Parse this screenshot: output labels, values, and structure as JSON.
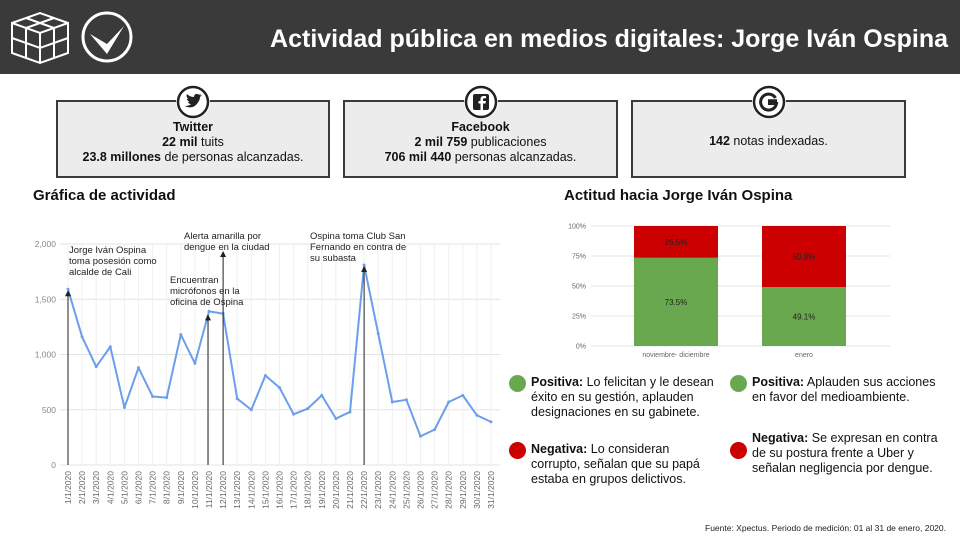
{
  "header": {
    "title": "Actividad pública en medios digitales: Jorge Iván Ospina"
  },
  "stats": {
    "twitter": {
      "name": "Twitter",
      "line1_bold": "22 mil",
      "line1_rest": " tuits",
      "line2_bold": "23.8 millones",
      "line2_rest": " de personas alcanzadas."
    },
    "facebook": {
      "name": "Facebook",
      "line1_bold": "2 mil 759",
      "line1_rest": " publicaciones",
      "line2_bold": "706 mil 440",
      "line2_rest": " personas alcanzadas."
    },
    "google": {
      "line1_bold": "142",
      "line1_rest": " notas indexadas."
    }
  },
  "sections": {
    "activity_title": "Gráfica de actividad",
    "attitude_title": "Actitud hacia Jorge Iván Ospina"
  },
  "legend": {
    "positive1_label": "Positiva:",
    "positive1_text": " Lo felicitan y le desean éxito en su gestión, aplauden designaciones en su gabinete.",
    "negative1_label": "Negativa:",
    "negative1_text": " Lo consideran corrupto, señalan que su papá estaba en grupos delictivos.",
    "positive2_label": "Positiva:",
    "positive2_text": "  Aplauden sus acciones en favor del medioambiente.",
    "negative2_label": "Negativa:",
    "negative2_text": " Se expresan en contra de su postura frente a Uber y señalan negligencia por dengue."
  },
  "footer": {
    "source": "Fuente: Xpectus. Periodo de medición:  01 al 31 de enero, 2020."
  },
  "colors": {
    "positive": "#6aa84f",
    "negative": "#cc0000",
    "line": "#6d9eeb",
    "header": "#3a3a3a"
  },
  "chart_data": [
    {
      "type": "line",
      "x": [
        "1/1/2020",
        "2/1/2020",
        "3/1/2020",
        "4/1/2020",
        "5/1/2020",
        "6/1/2020",
        "7/1/2020",
        "8/1/2020",
        "9/1/2020",
        "10/1/2020",
        "11/1/2020",
        "12/1/2020",
        "13/1/2020",
        "14/1/2020",
        "15/1/2020",
        "16/1/2020",
        "17/1/2020",
        "18/1/2020",
        "19/1/2020",
        "20/1/2020",
        "21/1/2020",
        "22/1/2020",
        "23/1/2020",
        "24/1/2020",
        "25/1/2020",
        "26/1/2020",
        "27/1/2020",
        "28/1/2020",
        "29/1/2020",
        "30/1/2020",
        "31/1/2020"
      ],
      "values": [
        1590,
        1160,
        890,
        1070,
        520,
        880,
        620,
        610,
        1180,
        920,
        1390,
        1370,
        600,
        500,
        810,
        700,
        460,
        510,
        630,
        420,
        480,
        1810,
        1190,
        570,
        590,
        260,
        320,
        570,
        630,
        450,
        390
      ],
      "yticks": [
        "0",
        "500",
        "1,000",
        "1,500",
        "2,000"
      ],
      "ylim": [
        0,
        2000
      ],
      "grid": true,
      "annotations": [
        {
          "text": [
            "Jorge Iván Ospina",
            "toma posesión como",
            "alcalde de Cali"
          ],
          "x_index": 0
        },
        {
          "text": [
            "Encuentran",
            "micrófonos en la",
            "oficina de Ospina"
          ],
          "x_index": 10
        },
        {
          "text": [
            "Alerta amarilla por",
            "dengue en la ciudad"
          ],
          "x_index": 11
        },
        {
          "text": [
            "Ospina toma Club San",
            "Fernando  en contra de",
            "su subasta"
          ],
          "x_index": 21
        }
      ]
    },
    {
      "type": "bar",
      "stacked": true,
      "categories": [
        "noviembre- diciembre",
        "enero"
      ],
      "series": [
        {
          "name": "Positiva",
          "values": [
            73.5,
            49.1
          ],
          "labels": [
            "73.5%",
            "49.1%"
          ]
        },
        {
          "name": "Negativa",
          "values": [
            26.5,
            50.9
          ],
          "labels": [
            "26.5%",
            "50.9%"
          ]
        }
      ],
      "yticks": [
        "0%",
        "25%",
        "50%",
        "75%",
        "100%"
      ],
      "ylim": [
        0,
        100
      ]
    }
  ]
}
